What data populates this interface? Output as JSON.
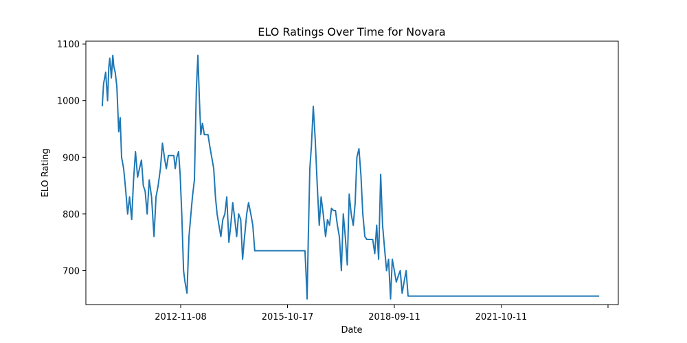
{
  "chart_data": {
    "type": "line",
    "title": "ELO Ratings Over Time for Novara",
    "xlabel": "Date",
    "ylabel": "ELO Rating",
    "x_tick_labels": [
      "2012-11-08",
      "2015-10-17",
      "2018-09-11",
      "2021-10-11",
      ""
    ],
    "y_ticks": [
      700,
      800,
      900,
      1000,
      1100
    ],
    "ylim": [
      640,
      1105
    ],
    "xlim": [
      "2009-07-16",
      "2024-08-04"
    ],
    "grid": false,
    "color": "#1f77b4",
    "series": [
      {
        "x": [
          "2010-01-01",
          "2010-01-15",
          "2010-02-05",
          "2010-02-25",
          "2010-03-10",
          "2010-03-20",
          "2010-04-05",
          "2010-04-20",
          "2010-05-01",
          "2010-05-15",
          "2010-06-01",
          "2010-06-20",
          "2010-07-05",
          "2010-07-20",
          "2010-08-10",
          "2010-09-01",
          "2010-09-20",
          "2010-10-10",
          "2010-11-01",
          "2010-11-20",
          "2010-12-10",
          "2011-01-01",
          "2011-01-20",
          "2011-02-10",
          "2011-03-01",
          "2011-03-20",
          "2011-04-10",
          "2011-05-01",
          "2011-05-25",
          "2011-06-20",
          "2011-07-10",
          "2011-08-01",
          "2011-08-25",
          "2011-09-15",
          "2011-10-05",
          "2011-10-25",
          "2011-11-15",
          "2011-12-10",
          "2012-01-10",
          "2012-01-25",
          "2012-02-10",
          "2012-02-28",
          "2012-03-15",
          "2012-04-01",
          "2012-04-20",
          "2012-05-05",
          "2012-05-25",
          "2012-06-15",
          "2012-07-05",
          "2012-07-20",
          "2012-08-10",
          "2012-08-30",
          "2012-09-15",
          "2012-10-01",
          "2012-10-15",
          "2012-11-01",
          "2012-11-20",
          "2012-12-10",
          "2012-12-28",
          "2013-01-15",
          "2013-02-05",
          "2013-02-25",
          "2013-03-15",
          "2013-04-01",
          "2013-04-20",
          "2013-05-10",
          "2013-05-30",
          "2013-06-20",
          "2013-07-10",
          "2013-08-01",
          "2013-08-20",
          "2013-09-10",
          "2013-10-01",
          "2013-10-20",
          "2013-11-10",
          "2013-12-01",
          "2013-12-20",
          "2014-01-10",
          "2014-02-01",
          "2014-02-20",
          "2014-03-15",
          "2014-04-05",
          "2014-04-25",
          "2014-05-15",
          "2014-06-01",
          "2014-08-01",
          "2015-02-01",
          "2015-08-01",
          "2015-09-10",
          "2015-09-25",
          "2015-10-05",
          "2015-10-17",
          "2015-10-30",
          "2015-11-15",
          "2015-12-01",
          "2015-12-20",
          "2016-01-10",
          "2016-01-30",
          "2016-02-20",
          "2016-03-10",
          "2016-04-01",
          "2016-04-25",
          "2016-05-15",
          "2016-06-05",
          "2016-06-25",
          "2016-07-15",
          "2016-08-05",
          "2016-08-25",
          "2016-09-15",
          "2016-10-05",
          "2016-10-25",
          "2016-11-15",
          "2016-12-05",
          "2016-12-25",
          "2017-01-15",
          "2017-02-05",
          "2017-02-25",
          "2017-03-15",
          "2017-04-05",
          "2017-04-25",
          "2017-05-15",
          "2017-06-05",
          "2017-06-25",
          "2017-07-15",
          "2017-08-05",
          "2017-08-25",
          "2017-09-15",
          "2017-10-05",
          "2017-10-25",
          "2017-11-15",
          "2017-12-05",
          "2017-12-25",
          "2018-01-15",
          "2018-02-05",
          "2018-02-25",
          "2018-03-15",
          "2018-04-05",
          "2018-04-25",
          "2018-05-15",
          "2018-06-05",
          "2018-06-25",
          "2018-07-15",
          "2018-08-05",
          "2018-08-25",
          "2019-06-01",
          "2021-01-01",
          "2023-01-01",
          "2024-01-20"
        ],
        "y": [
          990,
          1030,
          1050,
          1000,
          1060,
          1075,
          1040,
          1080,
          1060,
          1050,
          1025,
          945,
          970,
          900,
          880,
          840,
          800,
          830,
          790,
          860,
          910,
          865,
          880,
          895,
          850,
          840,
          800,
          860,
          830,
          760,
          830,
          850,
          880,
          925,
          900,
          880,
          903,
          903,
          903,
          880,
          900,
          910,
          870,
          800,
          700,
          680,
          660,
          760,
          800,
          830,
          860,
          1020,
          1080,
          1000,
          940,
          960,
          940,
          940,
          940,
          920,
          900,
          880,
          830,
          800,
          780,
          760,
          790,
          800,
          830,
          750,
          780,
          820,
          790,
          760,
          800,
          790,
          720,
          760,
          800,
          820,
          800,
          780,
          735,
          735,
          735,
          735,
          735,
          735,
          735,
          735,
          700,
          650,
          760,
          880,
          920,
          990,
          930,
          850,
          780,
          830,
          800,
          760,
          790,
          780,
          810,
          806,
          806,
          780,
          760,
          700,
          800,
          760,
          710,
          835,
          800,
          780,
          820,
          900,
          915,
          870,
          800,
          760,
          755,
          755,
          755,
          755,
          730,
          780,
          720,
          870,
          780,
          740,
          700,
          720,
          650,
          720,
          700,
          680,
          690,
          700,
          660,
          680,
          700,
          655,
          655,
          655,
          655,
          655
        ]
      }
    ]
  }
}
